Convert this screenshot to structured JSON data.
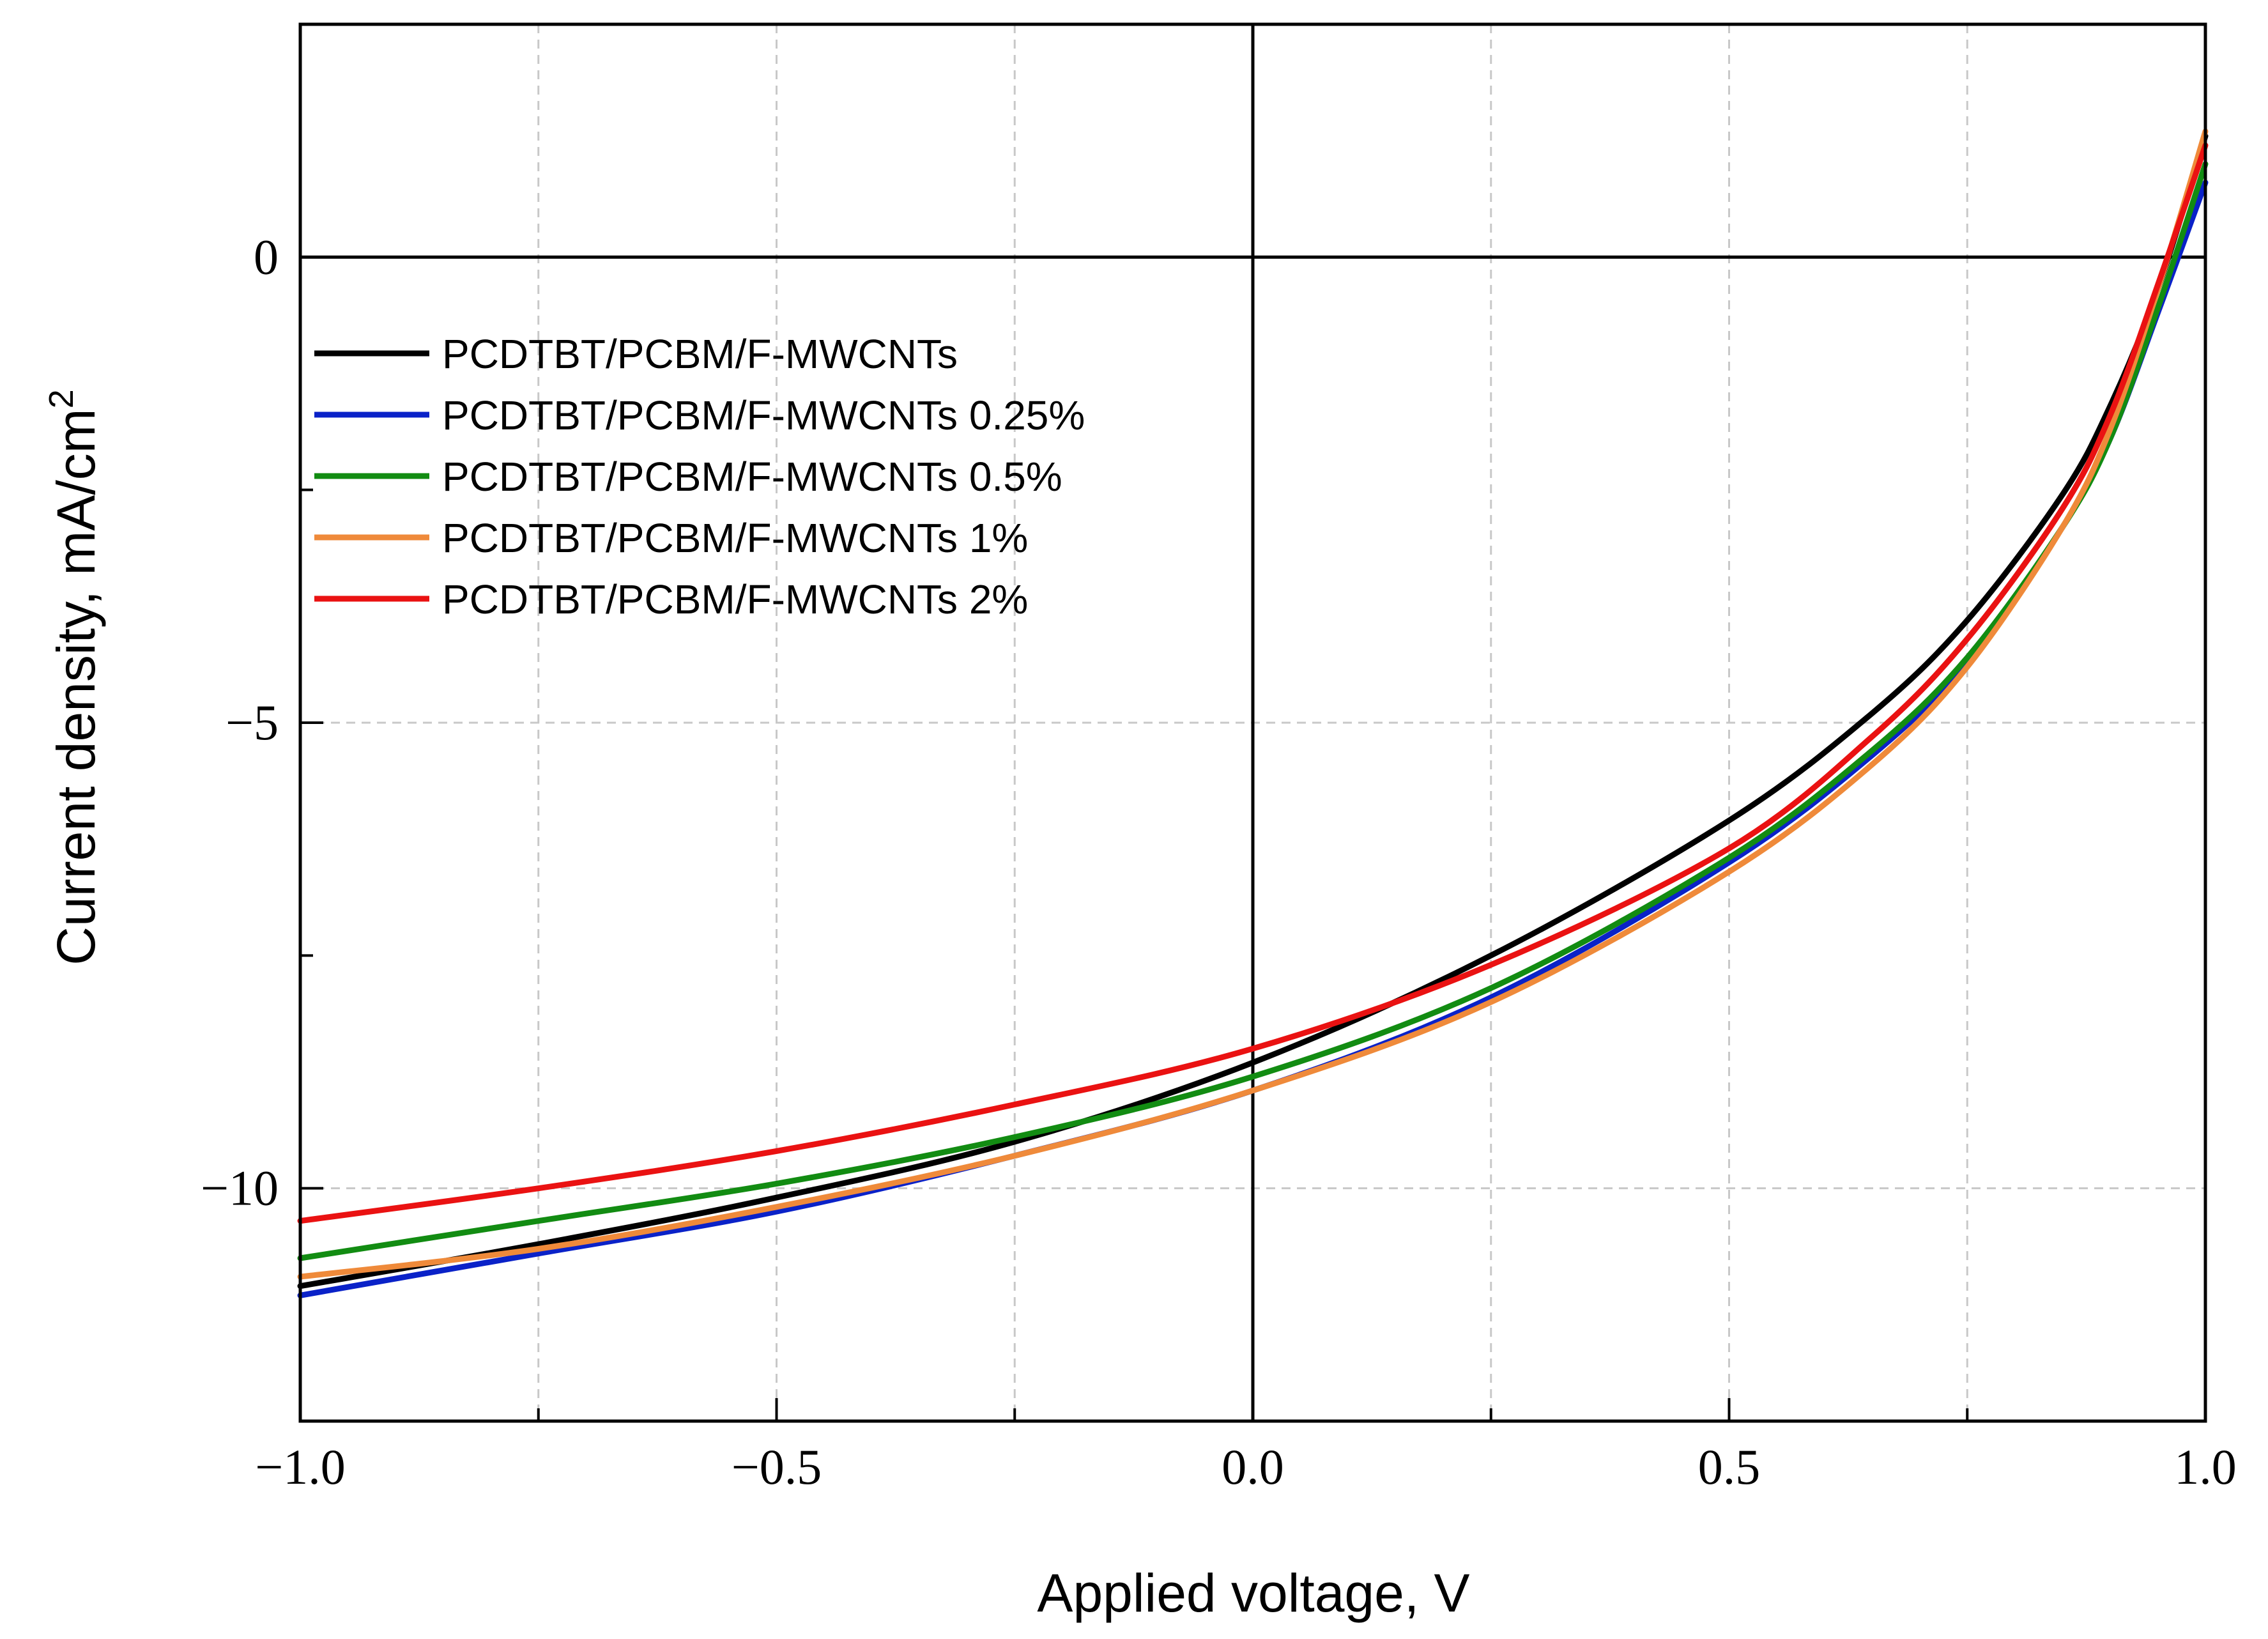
{
  "chart_data": {
    "type": "line",
    "title": "",
    "xlabel": "Applied voltage, V",
    "ylabel": "Current density, mA/cm",
    "ylabel_superscript": "2",
    "xlim": [
      -1.0,
      1.0
    ],
    "ylim": [
      -12.5,
      2.5
    ],
    "x_ticks": [
      -1.0,
      -0.5,
      0.0,
      0.5,
      1.0
    ],
    "x_tick_labels": [
      "−1.0",
      "−0.5",
      "0.0",
      "0.5",
      "1.0"
    ],
    "y_ticks": [
      -10,
      -5,
      0
    ],
    "y_tick_labels": [
      "−10",
      "−5",
      "0"
    ],
    "grid": true,
    "legend_position": "top-left",
    "x": [
      -1.0,
      -0.75,
      -0.5,
      -0.25,
      0.0,
      0.25,
      0.5,
      0.65,
      0.75,
      0.85,
      0.9,
      0.95,
      1.0
    ],
    "series": [
      {
        "name": "PCDTBT/PCBM/F-MWCNTs",
        "color": "#000000",
        "values": [
          -11.05,
          -10.6,
          -10.1,
          -9.5,
          -8.65,
          -7.5,
          -6.05,
          -4.9,
          -3.9,
          -2.55,
          -1.6,
          -0.35,
          1.3
        ]
      },
      {
        "name": "PCDTBT/PCBM/F-MWCNTs 0.25%",
        "color": "#0a22c8",
        "values": [
          -11.15,
          -10.7,
          -10.25,
          -9.65,
          -8.95,
          -7.95,
          -6.5,
          -5.35,
          -4.35,
          -2.9,
          -1.95,
          -0.6,
          0.8
        ]
      },
      {
        "name": "PCDTBT/PCBM/F-MWCNTs 0.5%",
        "color": "#128c12",
        "values": [
          -10.75,
          -10.35,
          -9.95,
          -9.45,
          -8.8,
          -7.85,
          -6.45,
          -5.3,
          -4.3,
          -2.9,
          -1.95,
          -0.55,
          1.0
        ]
      },
      {
        "name": "PCDTBT/PCBM/F-MWCNTs 1%",
        "color": "#ef8a3a",
        "values": [
          -10.95,
          -10.65,
          -10.2,
          -9.65,
          -8.95,
          -8.0,
          -6.6,
          -5.45,
          -4.4,
          -2.9,
          -1.85,
          -0.35,
          1.35
        ]
      },
      {
        "name": "PCDTBT/PCBM/F-MWCNTs 2%",
        "color": "#ea1212",
        "values": [
          -10.35,
          -10.0,
          -9.6,
          -9.1,
          -8.5,
          -7.6,
          -6.35,
          -5.15,
          -4.1,
          -2.7,
          -1.7,
          -0.3,
          1.2
        ]
      }
    ]
  }
}
